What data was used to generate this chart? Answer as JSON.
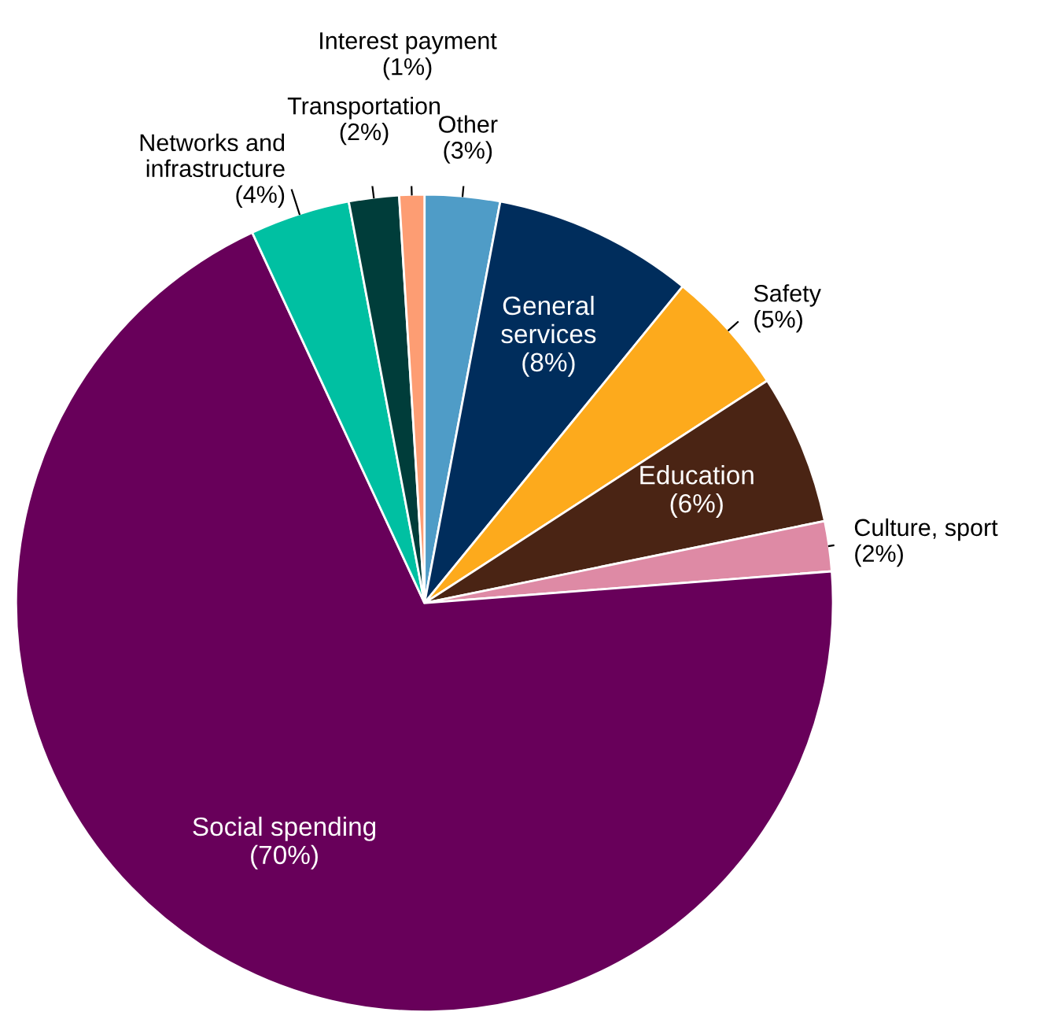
{
  "chart_data": {
    "type": "pie",
    "categories": [
      "Other",
      "General services",
      "Safety",
      "Education",
      "Culture, sport",
      "Social spending",
      "Networks and infrastructure",
      "Transportation",
      "Interest payment"
    ],
    "values": [
      3,
      8,
      5,
      6,
      2,
      70,
      4,
      2,
      1
    ],
    "value_labels": [
      "(3%)",
      "(8%)",
      "(5%)",
      "(6%)",
      "(2%)",
      "(70%)",
      "(4%)",
      "(2%)",
      "(1%)"
    ],
    "colors": [
      "#4f9cc7",
      "#002d5c",
      "#fdaa1c",
      "#4a2414",
      "#de8aa5",
      "#68005a",
      "#00c0a2",
      "#003d3a",
      "#fd9d73"
    ]
  }
}
